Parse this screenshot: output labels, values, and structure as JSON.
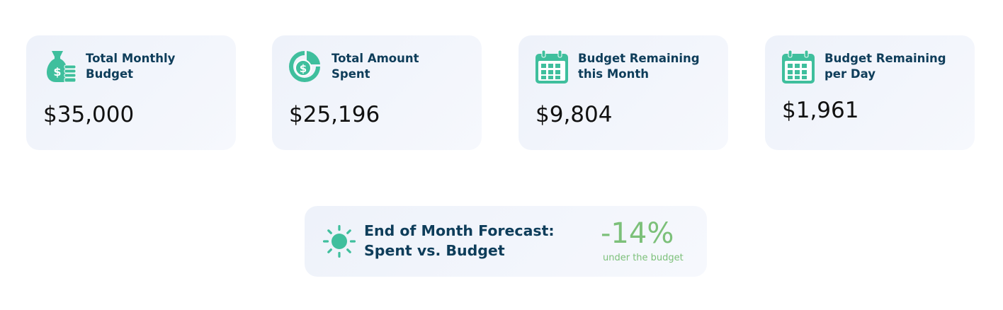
{
  "colors": {
    "accent_icon": "#3fbf9d",
    "title_text": "#0e3d5a",
    "positive": "#7cc079",
    "card_bg": "#eef2fa"
  },
  "cards": [
    {
      "icon": "money-bag-icon",
      "title_line1": "Total Monthly",
      "title_line2": "Budget",
      "value": "$35,000"
    },
    {
      "icon": "dollar-pie-icon",
      "title_line1": "Total Amount",
      "title_line2": "Spent",
      "value": "$25,196"
    },
    {
      "icon": "calendar-icon",
      "title_line1": "Budget Remaining",
      "title_line2": "this Month",
      "value": "$9,804"
    },
    {
      "icon": "calendar-icon",
      "title_line1": "Budget Remaining",
      "title_line2": "per Day",
      "value": "$1,961"
    }
  ],
  "forecast": {
    "icon": "sun-icon",
    "title_line1": "End of Month Forecast:",
    "title_line2": "Spent vs. Budget",
    "value": "-14%",
    "caption": "under the budget"
  }
}
